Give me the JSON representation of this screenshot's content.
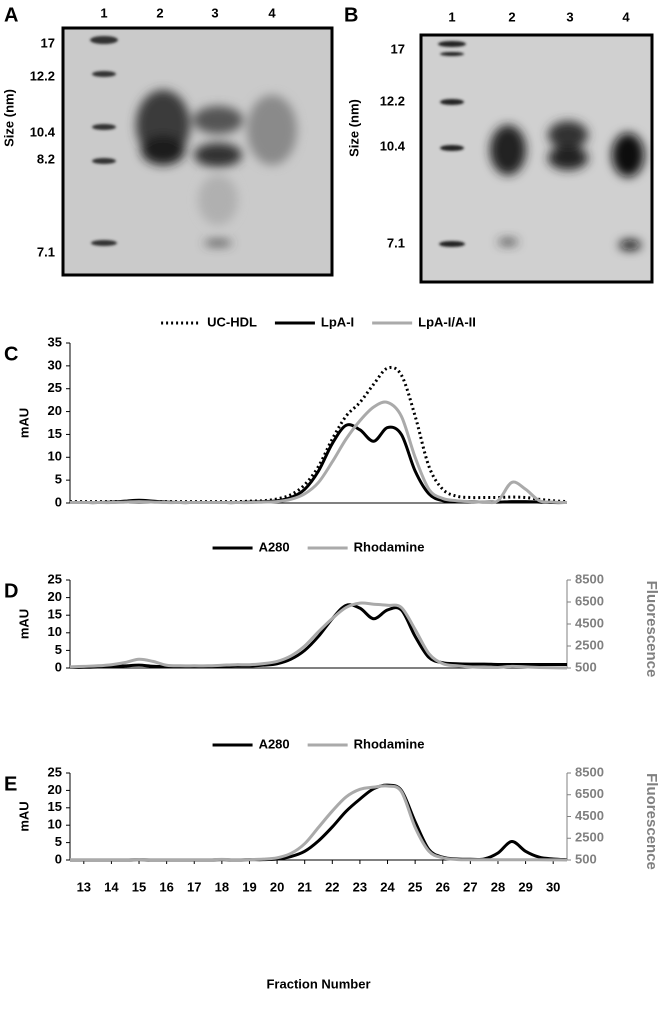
{
  "gels": [
    {
      "panel": "A",
      "ylabel": "Size (nm)",
      "lanes": [
        "1",
        "2",
        "3",
        "4"
      ],
      "sizes": [
        "17",
        "12.2",
        "10.4",
        "8.2",
        "7.1"
      ]
    },
    {
      "panel": "B",
      "ylabel": "Size (nm)",
      "lanes": [
        "1",
        "2",
        "3",
        "4"
      ],
      "sizes": [
        "17",
        "12.2",
        "10.4",
        "7.1"
      ]
    }
  ],
  "chart_data": [
    {
      "type": "line",
      "panel": "C",
      "ylabel": "mAU",
      "x": [
        12.5,
        13,
        13.5,
        14,
        14.5,
        15,
        15.5,
        16,
        16.5,
        17,
        17.5,
        18,
        18.5,
        19,
        19.5,
        20,
        20.5,
        21,
        21.5,
        22,
        22.5,
        23,
        23.5,
        24,
        24.5,
        25,
        25.5,
        26,
        26.5,
        27,
        27.5,
        28,
        28.5,
        29,
        29.5,
        30,
        30.5
      ],
      "xlim": [
        12.5,
        30.5
      ],
      "ylim": [
        0,
        35
      ],
      "yticks": [
        0,
        5,
        10,
        15,
        20,
        25,
        30,
        35
      ],
      "series": [
        {
          "name": "UC-HDL",
          "color": "#000000",
          "style": "dotted",
          "values": [
            0.3,
            0.3,
            0.3,
            0.3,
            0.3,
            0.4,
            0.3,
            0.3,
            0.3,
            0.3,
            0.3,
            0.3,
            0.3,
            0.4,
            0.5,
            0.9,
            1.8,
            4,
            8,
            14,
            19,
            22,
            26,
            29.5,
            28,
            19,
            8,
            3,
            1.5,
            1.2,
            1.2,
            1.2,
            1.3,
            1.2,
            0.8,
            0.5,
            0.3
          ]
        },
        {
          "name": "LpA-I",
          "color": "#000000",
          "style": "solid",
          "values": [
            0.1,
            0.1,
            0.1,
            0.2,
            0.4,
            0.6,
            0.4,
            0.2,
            0.1,
            0.1,
            0.1,
            0.1,
            0.1,
            0.2,
            0.3,
            0.5,
            1.2,
            3,
            7,
            13,
            17,
            16,
            13.5,
            16.5,
            15,
            7,
            2,
            0.5,
            0.3,
            0.3,
            0.2,
            0.2,
            0.3,
            0.3,
            0.2,
            0.1,
            0.1
          ]
        },
        {
          "name": "LpA-I/A-II",
          "color": "#aaaaaa",
          "style": "solid",
          "values": [
            0.1,
            0.1,
            0.1,
            0.1,
            0.2,
            0.3,
            0.2,
            0.1,
            0.1,
            0.1,
            0.1,
            0.1,
            0.1,
            0.1,
            0.2,
            0.3,
            0.8,
            2,
            4.5,
            9,
            14,
            18,
            21,
            22,
            19,
            10,
            3,
            1,
            0.5,
            0.3,
            0.2,
            0.5,
            4.5,
            3,
            0.5,
            0.2,
            0.1
          ]
        }
      ]
    },
    {
      "type": "line",
      "panel": "D",
      "ylabel": "mAU",
      "y2label": "Fluorescence",
      "x": [
        12.5,
        13,
        13.5,
        14,
        14.5,
        15,
        15.5,
        16,
        16.5,
        17,
        17.5,
        18,
        18.5,
        19,
        19.5,
        20,
        20.5,
        21,
        21.5,
        22,
        22.5,
        23,
        23.5,
        24,
        24.5,
        25,
        25.5,
        26,
        26.5,
        27,
        27.5,
        28,
        28.5,
        29,
        29.5,
        30,
        30.5
      ],
      "xlim": [
        12.5,
        30.5
      ],
      "ylim": [
        0,
        25
      ],
      "yticks": [
        0,
        5,
        10,
        15,
        20,
        25
      ],
      "y2lim": [
        500,
        8500
      ],
      "y2ticks": [
        500,
        2500,
        4500,
        6500,
        8500
      ],
      "y2color": "#808080",
      "series": [
        {
          "name": "A280",
          "color": "#000000",
          "style": "solid",
          "values": [
            0.2,
            0.2,
            0.3,
            0.4,
            0.6,
            0.8,
            0.5,
            0.4,
            0.4,
            0.4,
            0.5,
            0.5,
            0.6,
            0.6,
            0.8,
            1.2,
            2.5,
            5,
            9,
            14,
            17.8,
            17,
            14,
            16.5,
            16.5,
            9,
            3,
            1.5,
            1.2,
            1.1,
            1.1,
            1,
            1,
            1,
            1,
            1,
            1
          ]
        },
        {
          "name": "Rhodamine",
          "color": "#aaaaaa",
          "style": "solid",
          "axis": "y2",
          "values": [
            600,
            650,
            700,
            800,
            1000,
            1300,
            1100,
            750,
            700,
            700,
            700,
            750,
            800,
            800,
            900,
            1100,
            1600,
            2500,
            3800,
            5000,
            6000,
            6400,
            6300,
            6200,
            6000,
            4000,
            1800,
            900,
            700,
            600,
            550,
            550,
            650,
            600,
            550,
            520,
            500
          ]
        }
      ]
    },
    {
      "type": "line",
      "panel": "E",
      "ylabel": "mAU",
      "y2label": "Fluorescence",
      "xlabel": "Fraction Number",
      "x": [
        12.5,
        13,
        13.5,
        14,
        14.5,
        15,
        15.5,
        16,
        16.5,
        17,
        17.5,
        18,
        18.5,
        19,
        19.5,
        20,
        20.5,
        21,
        21.5,
        22,
        22.5,
        23,
        23.5,
        24,
        24.5,
        25,
        25.5,
        26,
        26.5,
        27,
        27.5,
        28,
        28.5,
        29,
        29.5,
        30,
        30.5
      ],
      "xlim": [
        12.5,
        30.5
      ],
      "xticks": [
        13,
        14,
        15,
        16,
        17,
        18,
        19,
        20,
        21,
        22,
        23,
        24,
        25,
        26,
        27,
        28,
        29,
        30
      ],
      "ylim": [
        0,
        25
      ],
      "yticks": [
        0,
        5,
        10,
        15,
        20,
        25
      ],
      "y2lim": [
        500,
        8500
      ],
      "y2ticks": [
        500,
        2500,
        4500,
        6500,
        8500
      ],
      "y2color": "#808080",
      "series": [
        {
          "name": "A280",
          "color": "#000000",
          "style": "solid",
          "values": [
            0,
            0,
            0,
            0,
            0,
            0.1,
            0,
            0,
            0,
            0,
            0,
            0.1,
            0,
            0.1,
            0.1,
            0.3,
            1,
            2.5,
            5.5,
            9.5,
            14,
            17.5,
            20.5,
            21.5,
            20,
            11,
            3,
            0.8,
            0.3,
            0.2,
            0.3,
            2,
            5.3,
            2.5,
            0.8,
            0.3,
            0.1
          ]
        },
        {
          "name": "Rhodamine",
          "color": "#aaaaaa",
          "style": "solid",
          "axis": "y2",
          "values": [
            520,
            520,
            520,
            520,
            520,
            550,
            520,
            520,
            520,
            520,
            520,
            560,
            520,
            540,
            580,
            700,
            1100,
            2000,
            3500,
            5000,
            6300,
            7000,
            7200,
            7300,
            6800,
            3500,
            1300,
            700,
            550,
            520,
            520,
            520,
            520,
            520,
            520,
            510,
            500
          ]
        }
      ]
    }
  ]
}
